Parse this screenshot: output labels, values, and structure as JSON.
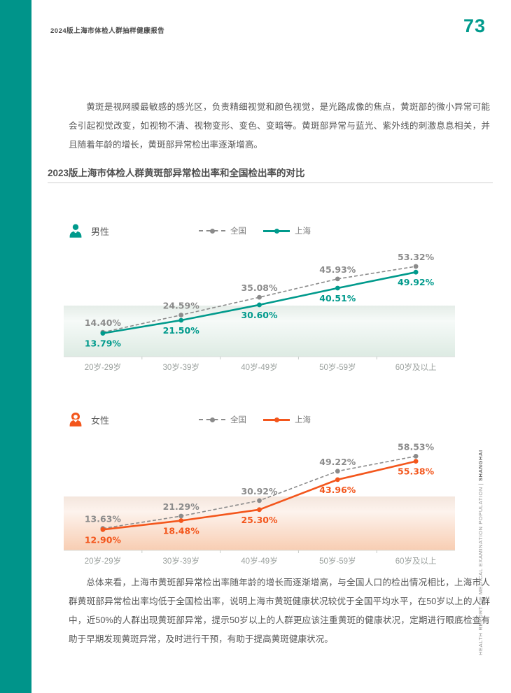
{
  "header": {
    "title": "2024版上海市体检人群抽样健康报告",
    "page_number": "73"
  },
  "intro_paragraph": "黄斑是视网膜最敏感的感光区，负责精细视觉和颜色视觉，是光路成像的焦点，黄斑部的微小异常可能会引起视觉改变，如视物不清、视物变形、变色、变暗等。黄斑部异常与蓝光、紫外线的刺激息息相关，并且随着年龄的增长，黄斑部异常检出率逐渐增高。",
  "section_title": "2023版上海市体检人群黄斑部异常检出率和全国检出率的对比",
  "conclusion_paragraph": "总体来看，上海市黄斑部异常检出率随年龄的增长而逐渐增高，与全国人口的检出情况相比，上海市人群黄斑部异常检出率均低于全国检出率，说明上海市黄斑健康状况较优于全国平均水平，在50岁以上的人群中，近50%的人群出现黄斑部异常，提示50岁以上的人群更应该注重黄斑的健康状况，定期进行眼底检查有助于早期发现黄斑异常，及时进行干预，有助于提高黄斑健康状况。",
  "side_text": {
    "main": "HEALTH REPORT OF MEDICAL EXAMINATION POPULATION",
    "divider": "|",
    "bold": "SHANGHAI"
  },
  "colors": {
    "teal_accent": "#009a8c",
    "left_bar_teal": "#00948a",
    "orange_accent": "#f3561c",
    "national_grey": "#8b8b8b"
  },
  "chart_data": [
    {
      "type": "line",
      "title": "男性",
      "categories": [
        "20岁-29岁",
        "30岁-39岁",
        "40岁-49岁",
        "50岁-59岁",
        "60岁及以上"
      ],
      "series": [
        {
          "name": "全国",
          "values": [
            14.4,
            24.59,
            35.08,
            45.93,
            53.32
          ],
          "style": "dashed",
          "color": "#8b8b8b",
          "label_position": "above"
        },
        {
          "name": "上海",
          "values": [
            13.79,
            21.5,
            30.6,
            40.51,
            49.92
          ],
          "style": "solid",
          "color": "#009a8c",
          "label_position": "below"
        }
      ],
      "value_suffix": "%",
      "ylim": [
        0,
        62
      ],
      "grid": false,
      "legend_position": "top"
    },
    {
      "type": "line",
      "title": "女性",
      "categories": [
        "20岁-29岁",
        "30岁-39岁",
        "40岁-49岁",
        "50岁-59岁",
        "60岁及以上"
      ],
      "series": [
        {
          "name": "全国",
          "values": [
            13.63,
            21.29,
            30.92,
            49.22,
            58.53
          ],
          "style": "dashed",
          "color": "#8b8b8b",
          "label_position": "above"
        },
        {
          "name": "上海",
          "values": [
            12.9,
            18.48,
            25.3,
            43.96,
            55.38
          ],
          "style": "solid",
          "color": "#f3561c",
          "label_position": "below"
        }
      ],
      "value_suffix": "%",
      "ylim": [
        0,
        65
      ],
      "grid": false,
      "legend_position": "top"
    }
  ]
}
